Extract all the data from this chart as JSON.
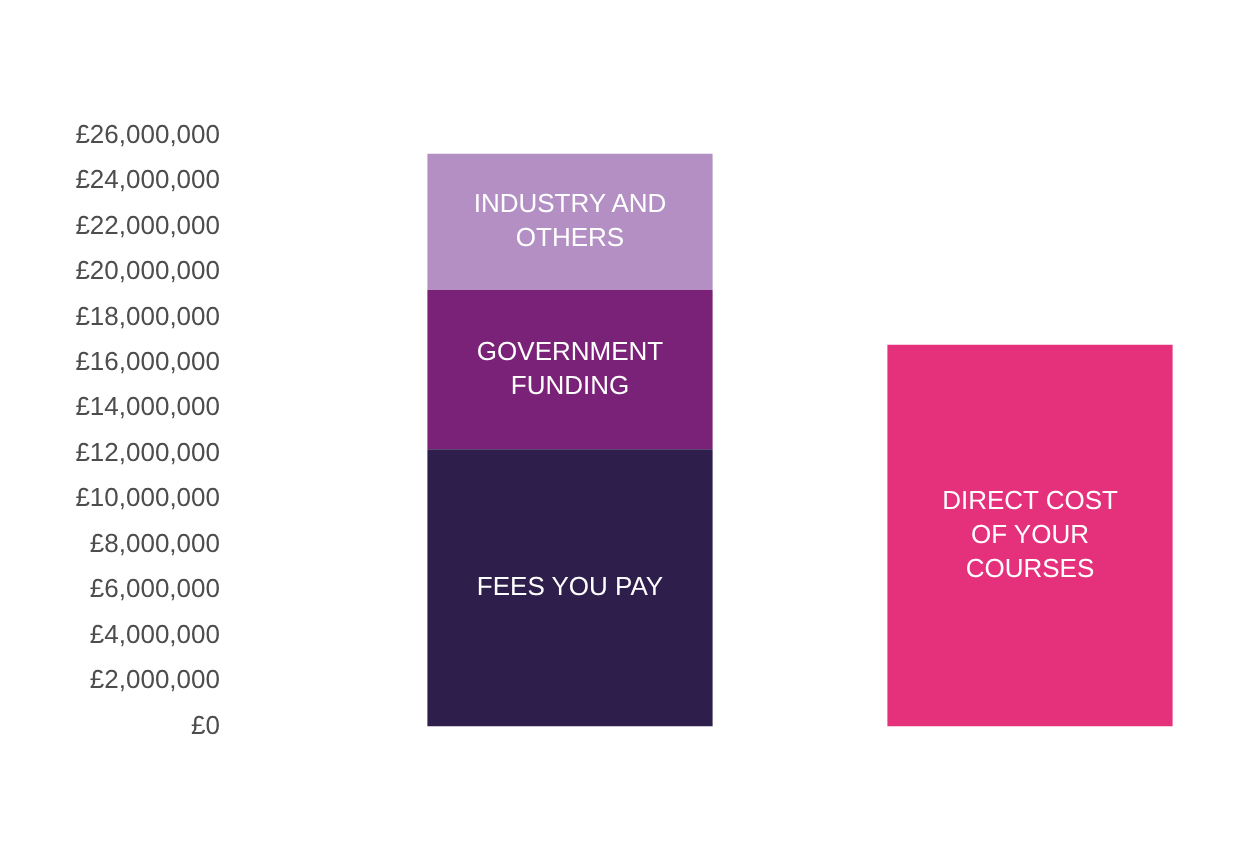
{
  "chart_data": {
    "type": "bar",
    "stacked": true,
    "categories": [
      null,
      null
    ],
    "series": [
      {
        "name": "FEES YOU PAY",
        "color": "#2e1e4b",
        "values": [
          12200000,
          null
        ]
      },
      {
        "name": "GOVERNMENT FUNDING",
        "color": "#7a2278",
        "values": [
          7000000,
          null
        ]
      },
      {
        "name": "INDUSTRY AND OTHERS",
        "color": "#b38fc4",
        "values": [
          6000000,
          null
        ]
      },
      {
        "name": "DIRECT COST OF YOUR COURSES",
        "color": "#e5307c",
        "values": [
          null,
          16800000
        ]
      }
    ],
    "ylim": [
      0,
      26000000
    ],
    "yticks": [
      {
        "value": 0,
        "label": "£0"
      },
      {
        "value": 2000000,
        "label": "£2,000,000"
      },
      {
        "value": 4000000,
        "label": "£4,000,000"
      },
      {
        "value": 6000000,
        "label": "£6,000,000"
      },
      {
        "value": 8000000,
        "label": "£8,000,000"
      },
      {
        "value": 10000000,
        "label": "£10,000,000"
      },
      {
        "value": 12000000,
        "label": "£12,000,000"
      },
      {
        "value": 14000000,
        "label": "£14,000,000"
      },
      {
        "value": 16000000,
        "label": "£16,000,000"
      },
      {
        "value": 18000000,
        "label": "£18,000,000"
      },
      {
        "value": 20000000,
        "label": "£20,000,000"
      },
      {
        "value": 22000000,
        "label": "£22,000,000"
      },
      {
        "value": 24000000,
        "label": "£24,000,000"
      },
      {
        "value": 26000000,
        "label": "£26,000,000"
      }
    ],
    "grid": false,
    "legend": false,
    "tick_labels": "y"
  }
}
